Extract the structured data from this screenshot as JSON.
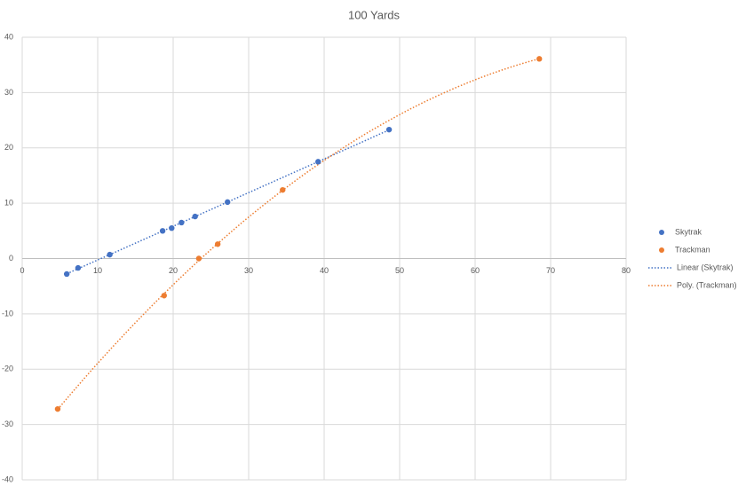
{
  "chart_data": {
    "type": "scatter",
    "title": "100 Yards",
    "xlim": [
      0,
      80
    ],
    "xticks": [
      0,
      10,
      20,
      30,
      40,
      50,
      60,
      70,
      80
    ],
    "ylim": [
      -40,
      40
    ],
    "yticks": [
      -40,
      -30,
      -20,
      -10,
      0,
      10,
      20,
      30,
      40
    ],
    "grid": true,
    "legend": "right",
    "series": [
      {
        "name": "Skytrak",
        "color": "#4472c4",
        "x": [
          5.9,
          7.4,
          11.6,
          18.6,
          19.8,
          21.1,
          22.9,
          27.2,
          39.2,
          48.6
        ],
        "values": [
          -2.8,
          -1.7,
          0.7,
          5.0,
          5.5,
          6.5,
          7.6,
          10.2,
          17.5,
          23.3
        ],
        "trendline": "linear",
        "trendline_name": "Linear (Skytrak)"
      },
      {
        "name": "Trackman",
        "color": "#ed7d31",
        "x": [
          4.7,
          18.8,
          23.4,
          25.9,
          34.5,
          68.5
        ],
        "values": [
          -27.2,
          -6.7,
          0,
          2.6,
          12.4,
          36.1
        ],
        "trendline": "poly2",
        "trendline_name": "Poly. (Trackman)"
      }
    ]
  }
}
